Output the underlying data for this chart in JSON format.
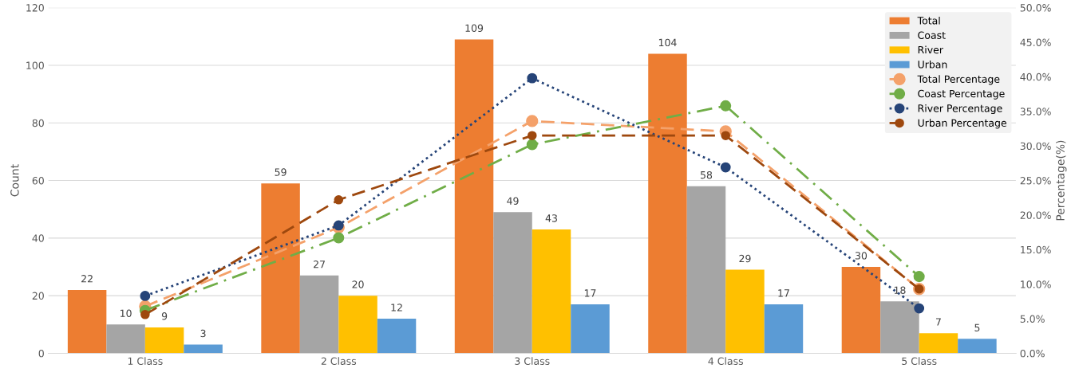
{
  "chart_data": {
    "type": "bar",
    "ylabel": "Count",
    "y2label": "Percentage(%)",
    "categories": [
      "1 Class",
      "2 Class",
      "3 Class",
      "4 Class",
      "5 Class"
    ],
    "ylim": [
      0,
      120
    ],
    "yticks": [
      0,
      20,
      40,
      60,
      80,
      100,
      120
    ],
    "y2lim": [
      0,
      50
    ],
    "y2ticks": [
      {
        "value": 0,
        "label": "0.0%"
      },
      {
        "value": 5,
        "label": "5.0%"
      },
      {
        "value": 10,
        "label": "10.0%"
      },
      {
        "value": 15,
        "label": "15.0%"
      },
      {
        "value": 20,
        "label": "20.0%"
      },
      {
        "value": 25,
        "label": "25.0%"
      },
      {
        "value": 30,
        "label": "30.0%"
      },
      {
        "value": 35,
        "label": "35.0%"
      },
      {
        "value": 40,
        "label": "40.0%"
      },
      {
        "value": 45,
        "label": "45.0%"
      },
      {
        "value": 50,
        "label": "50.0%"
      }
    ],
    "grid": "y",
    "legend": "top right",
    "series": [
      {
        "name": "Total",
        "color": "#ed7d31",
        "values": [
          22,
          59,
          109,
          104,
          30
        ],
        "value_labels": [
          "22",
          "59",
          "109",
          "104",
          "30"
        ]
      },
      {
        "name": "Coast",
        "color": "#a5a5a5",
        "values": [
          10,
          27,
          49,
          58,
          18
        ],
        "value_labels": [
          "10",
          "27",
          "49",
          "58",
          "18"
        ]
      },
      {
        "name": "River",
        "color": "#ffc000",
        "values": [
          9,
          20,
          43,
          29,
          7
        ],
        "value_labels": [
          "9",
          "20",
          "43",
          "29",
          "7"
        ]
      },
      {
        "name": "Urban",
        "color": "#5b9bd5",
        "values": [
          3,
          12,
          17,
          17,
          5
        ],
        "value_labels": [
          "3",
          "12",
          "17",
          "17",
          "5"
        ]
      },
      {
        "name": "Total Percentage",
        "type": "line",
        "axis": "y2",
        "color": "#f4a16a",
        "line_style": "dashed",
        "marker": "circle",
        "values": [
          6.8,
          18.2,
          33.6,
          32.1,
          9.3
        ]
      },
      {
        "name": "Coast Percentage",
        "type": "line",
        "axis": "y2",
        "color": "#70ad47",
        "line_style": "dashdot",
        "marker": "circle",
        "values": [
          6.2,
          16.7,
          30.2,
          35.8,
          11.1
        ]
      },
      {
        "name": "River Percentage",
        "type": "line",
        "axis": "y2",
        "color": "#264478",
        "line_style": "dotted",
        "marker": "circle",
        "values": [
          8.3,
          18.5,
          39.8,
          26.9,
          6.5
        ]
      },
      {
        "name": "Urban Percentage",
        "type": "line",
        "axis": "y2",
        "color": "#9e480e",
        "line_style": "dashed",
        "marker": "circle",
        "values": [
          5.6,
          22.2,
          31.5,
          31.5,
          9.3
        ]
      }
    ]
  }
}
